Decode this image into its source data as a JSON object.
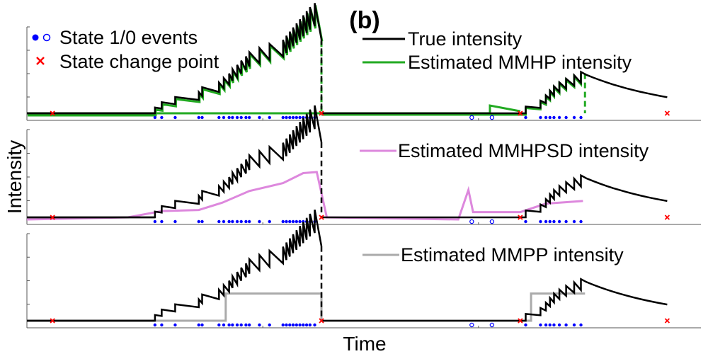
{
  "figure": {
    "title": "(b)",
    "xlabel": "Time",
    "ylabel": "Intensity"
  },
  "chart_data": [
    {
      "type": "line",
      "panel": "top",
      "xlim": [
        0,
        1000
      ],
      "legend": [
        {
          "label": "State 1/0 events",
          "marker": "dot-circle",
          "color": "#0000ff"
        },
        {
          "label": "State change point",
          "marker": "x",
          "color": "#ff0000"
        },
        {
          "label": "True intensity",
          "color": "#000000"
        },
        {
          "label": "Estimated MMHP intensity",
          "color": "#22aa22"
        }
      ],
      "series": [
        {
          "name": "True intensity",
          "color": "#000000"
        },
        {
          "name": "Estimated MMHP intensity",
          "color": "#22aa22"
        }
      ]
    },
    {
      "type": "line",
      "panel": "middle",
      "xlim": [
        0,
        1000
      ],
      "legend": [
        {
          "label": "Estimated MMHPSD intensity",
          "color": "#dd88dd"
        }
      ],
      "series": [
        {
          "name": "True intensity",
          "color": "#000000"
        },
        {
          "name": "Estimated MMHPSD intensity",
          "color": "#dd88dd"
        }
      ]
    },
    {
      "type": "line",
      "panel": "bottom",
      "xlim": [
        0,
        1000
      ],
      "legend": [
        {
          "label": "Estimated MMPP intensity",
          "color": "#aaaaaa"
        }
      ],
      "series": [
        {
          "name": "True intensity",
          "color": "#000000"
        },
        {
          "name": "Estimated MMPP intensity",
          "color": "#aaaaaa"
        }
      ]
    }
  ],
  "events": {
    "state1_times": [
      190,
      200,
      220,
      255,
      260,
      285,
      292,
      300,
      305,
      312,
      318,
      325,
      330,
      345,
      360,
      380,
      385,
      390,
      395,
      400,
      405,
      410,
      415,
      420,
      427,
      740,
      762,
      770,
      776,
      782,
      790,
      800,
      812,
      822
    ],
    "state0_times": [
      660,
      690
    ],
    "change_points": [
      38,
      437,
      732,
      950
    ]
  }
}
